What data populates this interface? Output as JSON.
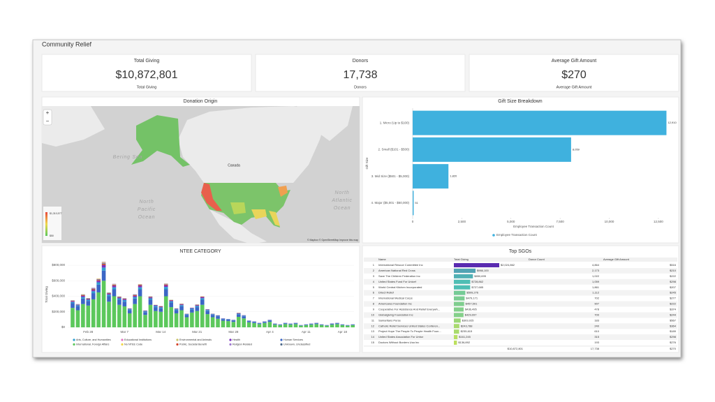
{
  "header": {
    "title": "Community Relief"
  },
  "kpis": [
    {
      "title": "Total Giving",
      "value": "$10,872,801",
      "caption": "Total Giving"
    },
    {
      "title": "Donors",
      "value": "17,738",
      "caption": "Donors"
    },
    {
      "title": "Average Gift Amount",
      "value": "$270",
      "caption": "Average Gift Amount"
    }
  ],
  "map": {
    "title": "Donation Origin",
    "zoom_in": "+",
    "zoom_out": "−",
    "labels": {
      "bering": "Bering Sea",
      "canada": "Canada",
      "pacific": [
        "North",
        "Pacific",
        "Ocean"
      ],
      "atlantic": [
        "North",
        "Atlantic",
        "Ocean"
      ]
    },
    "legend_max": "$1,310,577",
    "legend_min": "$50",
    "attribution": "© Mapbox © OpenStreetMap Improve this map"
  },
  "gift_chart": {
    "type": "bar",
    "orientation": "horizontal",
    "title": "Gift Size Breakdown",
    "categories": [
      "1. Micro (Up to $100)",
      "2. Small ($101 - $500)",
      "3. Mid Size ($501 - $5,000)",
      "4. Major ($5,001 - $50,000)"
    ],
    "series": [
      {
        "name": "Employee Transaction Count",
        "color": "#3fb1de",
        "values": [
          12910,
          8059,
          1820,
          51
        ],
        "value_labels": [
          "12,910",
          "8,059",
          "1,820",
          "51"
        ]
      }
    ],
    "xlim": [
      0,
      13000
    ],
    "xticks": [
      0,
      {
        "value": 2500,
        "label": "2,500"
      },
      {
        "value": 5000,
        "label": "5,000"
      },
      {
        "value": 7500,
        "label": "7,500"
      },
      {
        "value": 10000,
        "label": "10,000"
      },
      {
        "value": 12500,
        "label": "12,500"
      }
    ],
    "x_label": "Employee Transaction Count",
    "y_label": "Gift Size"
  },
  "ntee_chart": {
    "type": "bar",
    "stacked": true,
    "title": "NTEE CATEGORY",
    "y_label": "Total Giving",
    "categories": [
      null,
      null,
      null,
      "Feb 28",
      null,
      null,
      null,
      null,
      null,
      null,
      "Mar 7",
      null,
      null,
      null,
      null,
      null,
      null,
      "Mar 14",
      null,
      null,
      null,
      null,
      null,
      null,
      "Mar 21",
      null,
      null,
      null,
      null,
      null,
      null,
      "Mar 28",
      null,
      null,
      null,
      null,
      null,
      null,
      "Apr 4",
      null,
      null,
      null,
      null,
      null,
      null,
      "Apr 11",
      null,
      null,
      null,
      null,
      null,
      null,
      "Apr 18",
      null,
      null
    ],
    "ylim": [
      0,
      850000
    ],
    "yticks": [
      {
        "value": 0,
        "label": "$0"
      },
      {
        "value": 200000,
        "label": "$200,000"
      },
      {
        "value": 400000,
        "label": "$400,000"
      },
      {
        "value": 600000,
        "label": "$600,000"
      },
      {
        "value": 800000,
        "label": "$800,000"
      }
    ],
    "series": [
      {
        "name": "Arts, Culture, and Humanities",
        "color": "#2f9fd0",
        "values": [
          15000,
          12000,
          20000,
          15000,
          25000,
          30000,
          40000,
          20000,
          25000,
          18000,
          20000,
          12000,
          20000,
          25000,
          10000,
          18000,
          15000,
          12000,
          30000,
          15000,
          12000,
          15000,
          8000,
          12000,
          15000,
          20000,
          12000,
          8000,
          8000,
          6000,
          5000,
          5000,
          10000,
          8000,
          4000,
          4000,
          3000,
          4000,
          5000,
          3000,
          2000,
          3000,
          3000,
          3000,
          2000,
          2000,
          3000,
          3000,
          2000,
          2000,
          3000,
          3000,
          2000,
          2000,
          2000
        ]
      },
      {
        "name": "Educational Institutions",
        "color": "#e377c2",
        "values": [
          3000,
          0,
          3000,
          0,
          5000,
          5000,
          5000,
          0,
          3000,
          0,
          3000,
          0,
          3000,
          3000,
          0,
          3000,
          0,
          0,
          3000,
          0,
          0,
          0,
          0,
          0,
          0,
          3000,
          0,
          0,
          0,
          0,
          0,
          0,
          0,
          0,
          0,
          0,
          0,
          0,
          0,
          0,
          0,
          0,
          0,
          0,
          0,
          0,
          0,
          0,
          0,
          0,
          0,
          0,
          0,
          0,
          0
        ]
      },
      {
        "name": "Environmental and Animals",
        "color": "#c9c46a",
        "values": [
          2000,
          2000,
          3000,
          2000,
          3000,
          4000,
          5000,
          2000,
          3000,
          2000,
          2000,
          1000,
          2000,
          3000,
          1000,
          2000,
          2000,
          1000,
          3000,
          2000,
          1000,
          2000,
          1000,
          1000,
          2000,
          2000,
          1000,
          1000,
          1000,
          0,
          0,
          0,
          0,
          0,
          0,
          0,
          0,
          0,
          0,
          0,
          0,
          0,
          0,
          0,
          0,
          0,
          0,
          0,
          0,
          0,
          0,
          0,
          0,
          0,
          0
        ]
      },
      {
        "name": "Health",
        "color": "#7b2fbe",
        "values": [
          10000,
          8000,
          15000,
          10000,
          15000,
          20000,
          30000,
          15000,
          20000,
          12000,
          12000,
          8000,
          15000,
          20000,
          8000,
          12000,
          10000,
          8000,
          20000,
          10000,
          8000,
          10000,
          5000,
          8000,
          10000,
          12000,
          8000,
          5000,
          5000,
          4000,
          3000,
          3000,
          6000,
          5000,
          3000,
          2000,
          2000,
          2000,
          3000,
          2000,
          1000,
          2000,
          2000,
          2000,
          1000,
          1000,
          2000,
          2000,
          1000,
          1000,
          2000,
          2000,
          1000,
          1000,
          1000
        ]
      },
      {
        "name": "Human Services",
        "color": "#3b66c5",
        "values": [
          60000,
          50000,
          70000,
          60000,
          80000,
          100000,
          130000,
          70000,
          90000,
          65000,
          60000,
          40000,
          70000,
          90000,
          35000,
          65000,
          50000,
          45000,
          90000,
          60000,
          40000,
          50000,
          30000,
          40000,
          50000,
          65000,
          40000,
          30000,
          30000,
          20000,
          18000,
          18000,
          30000,
          27000,
          15000,
          15000,
          10000,
          14000,
          18000,
          8000,
          7000,
          10000,
          8000,
          10000,
          5000,
          7000,
          8000,
          10000,
          7000,
          5000,
          9000,
          10000,
          7000,
          5000,
          7000
        ]
      },
      {
        "name": "International, Foreign Affairs",
        "color": "#5cc85c",
        "values": [
          250000,
          220000,
          300000,
          280000,
          360000,
          450000,
          600000,
          330000,
          400000,
          290000,
          270000,
          180000,
          300000,
          400000,
          160000,
          290000,
          210000,
          200000,
          400000,
          260000,
          180000,
          220000,
          130000,
          190000,
          210000,
          290000,
          170000,
          130000,
          110000,
          85000,
          80000,
          70000,
          135000,
          115000,
          65000,
          55000,
          42000,
          56000,
          70000,
          35000,
          28000,
          42000,
          35000,
          42000,
          21000,
          28000,
          35000,
          42000,
          28000,
          21000,
          35000,
          42000,
          28000,
          21000,
          28000
        ]
      },
      {
        "name": "No NTEE Code",
        "color": "#f2d64b",
        "values": [
          0,
          0,
          2000,
          0,
          0,
          3000,
          5000,
          0,
          2000,
          0,
          0,
          0,
          0,
          2000,
          0,
          0,
          0,
          0,
          2000,
          0,
          0,
          0,
          0,
          0,
          0,
          0,
          0,
          0,
          0,
          0,
          0,
          0,
          0,
          0,
          0,
          0,
          0,
          0,
          0,
          0,
          0,
          0,
          0,
          0,
          0,
          0,
          0,
          0,
          0,
          0,
          0,
          0,
          0,
          0,
          0
        ]
      },
      {
        "name": "Public, Societal Benefit",
        "color": "#d4442a",
        "values": [
          5000,
          0,
          8000,
          5000,
          10000,
          10000,
          15000,
          5000,
          10000,
          5000,
          5000,
          0,
          8000,
          10000,
          0,
          5000,
          0,
          5000,
          10000,
          5000,
          0,
          5000,
          0,
          0,
          5000,
          5000,
          0,
          0,
          0,
          0,
          0,
          0,
          3000,
          0,
          0,
          0,
          0,
          0,
          0,
          0,
          0,
          0,
          0,
          0,
          0,
          0,
          0,
          0,
          0,
          0,
          0,
          0,
          0,
          0,
          0
        ]
      },
      {
        "name": "Religion Related",
        "color": "#a07ad0",
        "values": [
          0,
          3000,
          0,
          0,
          4000,
          0,
          5000,
          0,
          3000,
          0,
          0,
          0,
          3000,
          0,
          0,
          0,
          0,
          0,
          3000,
          0,
          0,
          0,
          0,
          0,
          0,
          0,
          0,
          0,
          0,
          0,
          0,
          0,
          0,
          0,
          0,
          0,
          0,
          0,
          0,
          0,
          0,
          0,
          0,
          0,
          0,
          0,
          0,
          0,
          0,
          0,
          0,
          0,
          0,
          0,
          0
        ]
      },
      {
        "name": "Unknown, Unclassified",
        "color": "#4e6a8a",
        "values": [
          5000,
          5000,
          5000,
          5000,
          8000,
          8000,
          10000,
          5000,
          5000,
          5000,
          5000,
          3000,
          5000,
          5000,
          3000,
          5000,
          3000,
          3000,
          5000,
          3000,
          3000,
          3000,
          2000,
          2000,
          3000,
          3000,
          2000,
          2000,
          2000,
          1000,
          1000,
          1000,
          2000,
          1000,
          1000,
          1000,
          1000,
          1000,
          1000,
          1000,
          1000,
          1000,
          1000,
          1000,
          1000,
          1000,
          1000,
          1000,
          1000,
          1000,
          1000,
          1000,
          1000,
          1000,
          1000
        ]
      }
    ]
  },
  "top_sgos": {
    "title": "Top SGOs",
    "columns": [
      "Name",
      "Total Giving",
      "Donor Count",
      "Average Gift Amount"
    ],
    "rows": [
      {
        "rank": 1,
        "name": "International Rescue Committee Inc",
        "total_giving": {
          "value": 2024862,
          "label": "$2,024,862"
        },
        "donor_count": "4,864",
        "average_gift": "$516"
      },
      {
        "rank": 2,
        "name": "American National Red Cross",
        "total_giving": {
          "value": 966100,
          "label": "$966,100"
        },
        "donor_count": "2,173",
        "average_gift": "$210"
      },
      {
        "rank": 3,
        "name": "Save The Children Federation Inc",
        "total_giving": {
          "value": 850695,
          "label": "$850,695"
        },
        "donor_count": "1,022",
        "average_gift": "$222"
      },
      {
        "rank": 4,
        "name": "United States Fund For Unicef",
        "total_giving": {
          "value": 728862,
          "label": "$728,862"
        },
        "donor_count": "1,059",
        "average_gift": "$298"
      },
      {
        "rank": 5,
        "name": "World Central Kitchen Incorporated",
        "total_giving": {
          "value": 727685,
          "label": "$727,685"
        },
        "donor_count": "1,861",
        "average_gift": "$207"
      },
      {
        "rank": 6,
        "name": "Direct Relief",
        "total_giving": {
          "value": 509276,
          "label": "$509,276"
        },
        "donor_count": "1,112",
        "average_gift": "$245"
      },
      {
        "rank": 7,
        "name": "International Medical Corps",
        "total_giving": {
          "value": 479171,
          "label": "$479,171"
        },
        "donor_count": "702",
        "average_gift": "$277"
      },
      {
        "rank": 8,
        "name": "Americares Foundation Inc",
        "total_giving": {
          "value": 457501,
          "label": "$457,501"
        },
        "donor_count": "907",
        "average_gift": "$222"
      },
      {
        "rank": 9,
        "name": "Cooperative For Assistance And Relief Everywh...",
        "total_giving": {
          "value": 436495,
          "label": "$436,495"
        },
        "donor_count": "478",
        "average_gift": "$374"
      },
      {
        "rank": 10,
        "name": "Globalgiving Foundation Inc",
        "total_giving": {
          "value": 429097,
          "label": "$429,097"
        },
        "donor_count": "700",
        "average_gift": "$244"
      },
      {
        "rank": 11,
        "name": "Samaritans Purse",
        "total_giving": {
          "value": 303025,
          "label": "$303,025"
        },
        "donor_count": "183",
        "average_gift": "$567"
      },
      {
        "rank": 12,
        "name": "Catholic Relief Services United States Conferen...",
        "total_giving": {
          "value": 243788,
          "label": "$243,788"
        },
        "donor_count": "240",
        "average_gift": "$364"
      },
      {
        "rank": 13,
        "name": "Project Hope The People To People Health Foun...",
        "total_giving": {
          "value": 235615,
          "label": "$235,615"
        },
        "donor_count": "610",
        "average_gift": "$189"
      },
      {
        "rank": 14,
        "name": "United States Association For Unhcr",
        "total_giving": {
          "value": 161245,
          "label": "$161,245"
        },
        "donor_count": "315",
        "average_gift": "$298"
      },
      {
        "rank": 15,
        "name": "Doctors Without Borders Usa Inc",
        "total_giving": {
          "value": 136892,
          "label": "$136,892"
        },
        "donor_count": "193",
        "average_gift": "$276"
      }
    ],
    "total": {
      "total_giving": "$10,872,801",
      "donor_count": "17,738",
      "average_gift": "$270"
    }
  }
}
